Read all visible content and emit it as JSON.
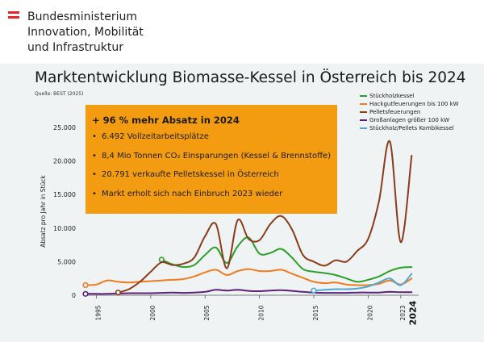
{
  "header": {
    "ministry_line1": "Bundesministerium",
    "ministry_line2": "Innovation, Mobilität",
    "ministry_line3": "und Infrastruktur",
    "flag_colors": [
      "#e4262b",
      "#ffffff",
      "#e4262b"
    ]
  },
  "infobox": {
    "headline": "+ 96 % mehr Absatz in 2024",
    "points": [
      "6.492 Vollzeitarbeitsplätze",
      "8,4 Mio Tonnen CO₂ Einsparungen (Kessel & Brennstoffe)",
      "20.791 verkaufte Pelletskessel in Österreich",
      "Markt erholt sich nach Einbruch 2023 wieder"
    ],
    "bullet": "•"
  },
  "chart_data": {
    "type": "line",
    "title": "Marktentwicklung Biomasse-Kessel in Österreich bis 2024",
    "subtitle": "Quelle: BEST (2025)",
    "xlabel": "",
    "ylabel": "Absatz pro Jahr in Stück",
    "ylim": [
      0,
      25000
    ],
    "xlim": [
      1994,
      2024.5
    ],
    "yticks": [
      0,
      5000,
      10000,
      15000,
      20000,
      25000
    ],
    "ytick_labels": [
      "0",
      "5.000",
      "10.000",
      "15.000",
      "20.000",
      "25.000"
    ],
    "xticks": [
      1995,
      2000,
      2005,
      2010,
      2015,
      2020,
      2023
    ],
    "xtick_labels": [
      "1995",
      "2000",
      "2005",
      "2010",
      "2015",
      "2020",
      "2023"
    ],
    "final_year_label": "2024",
    "grid": false,
    "legend_position": "top-right",
    "series": [
      {
        "name": "Stückholzkessel",
        "color": "#2aa02a",
        "x": [
          2001,
          2002,
          2003,
          2004,
          2005,
          2006,
          2007,
          2008,
          2009,
          2010,
          2011,
          2012,
          2013,
          2014,
          2015,
          2016,
          2017,
          2018,
          2019,
          2020,
          2021,
          2022,
          2023,
          2024
        ],
        "y": [
          5300,
          4600,
          4200,
          4500,
          6000,
          7100,
          4800,
          7300,
          8600,
          6200,
          6300,
          6900,
          5600,
          3900,
          3500,
          3300,
          3000,
          2500,
          2000,
          2300,
          2800,
          3600,
          4100,
          4200
        ]
      },
      {
        "name": "Hackgutfeuerungen bis 100 kW",
        "color": "#f07a1e",
        "x": [
          1994,
          1995,
          1996,
          1997,
          1998,
          1999,
          2000,
          2001,
          2002,
          2003,
          2004,
          2005,
          2006,
          2007,
          2008,
          2009,
          2010,
          2011,
          2012,
          2013,
          2014,
          2015,
          2016,
          2017,
          2018,
          2019,
          2020,
          2021,
          2022,
          2023,
          2024
        ],
        "y": [
          1500,
          1600,
          2200,
          2000,
          1900,
          2000,
          2100,
          2200,
          2300,
          2400,
          2800,
          3400,
          3800,
          3000,
          3600,
          3900,
          3600,
          3600,
          3800,
          3200,
          2600,
          2000,
          1800,
          1900,
          1600,
          1500,
          1500,
          1700,
          2200,
          1600,
          2500
        ]
      },
      {
        "name": "Pelletsfeuerungen",
        "color": "#8b3a1a",
        "x": [
          1997,
          1998,
          1999,
          2000,
          2001,
          2002,
          2003,
          2004,
          2005,
          2006,
          2007,
          2008,
          2009,
          2010,
          2011,
          2012,
          2013,
          2014,
          2015,
          2016,
          2017,
          2018,
          2019,
          2020,
          2021,
          2022,
          2023,
          2024
        ],
        "y": [
          400,
          900,
          2000,
          3500,
          4900,
          4500,
          4700,
          5600,
          8800,
          10600,
          4000,
          11200,
          8400,
          8200,
          10600,
          11800,
          9800,
          6000,
          5000,
          4400,
          5200,
          5000,
          6600,
          8400,
          14000,
          22900,
          7900,
          20791
        ]
      },
      {
        "name": "Großanlagen größer 100 kW",
        "color": "#5a2479",
        "x": [
          1994,
          1995,
          1996,
          1997,
          1998,
          1999,
          2000,
          2001,
          2002,
          2003,
          2004,
          2005,
          2006,
          2007,
          2008,
          2009,
          2010,
          2011,
          2012,
          2013,
          2014,
          2015,
          2016,
          2017,
          2018,
          2019,
          2020,
          2021,
          2022,
          2023,
          2024
        ],
        "y": [
          200,
          200,
          200,
          250,
          300,
          300,
          300,
          350,
          400,
          350,
          400,
          500,
          800,
          700,
          800,
          650,
          600,
          700,
          750,
          650,
          500,
          400,
          350,
          350,
          350,
          400,
          400,
          400,
          500,
          450,
          450
        ]
      },
      {
        "name": "Stückholz/Pellets Kombikessel",
        "color": "#4fa7d8",
        "x": [
          2015,
          2016,
          2017,
          2018,
          2019,
          2020,
          2021,
          2022,
          2023,
          2024
        ],
        "y": [
          700,
          800,
          900,
          900,
          1000,
          1300,
          1900,
          2500,
          1500,
          3200
        ]
      }
    ]
  }
}
